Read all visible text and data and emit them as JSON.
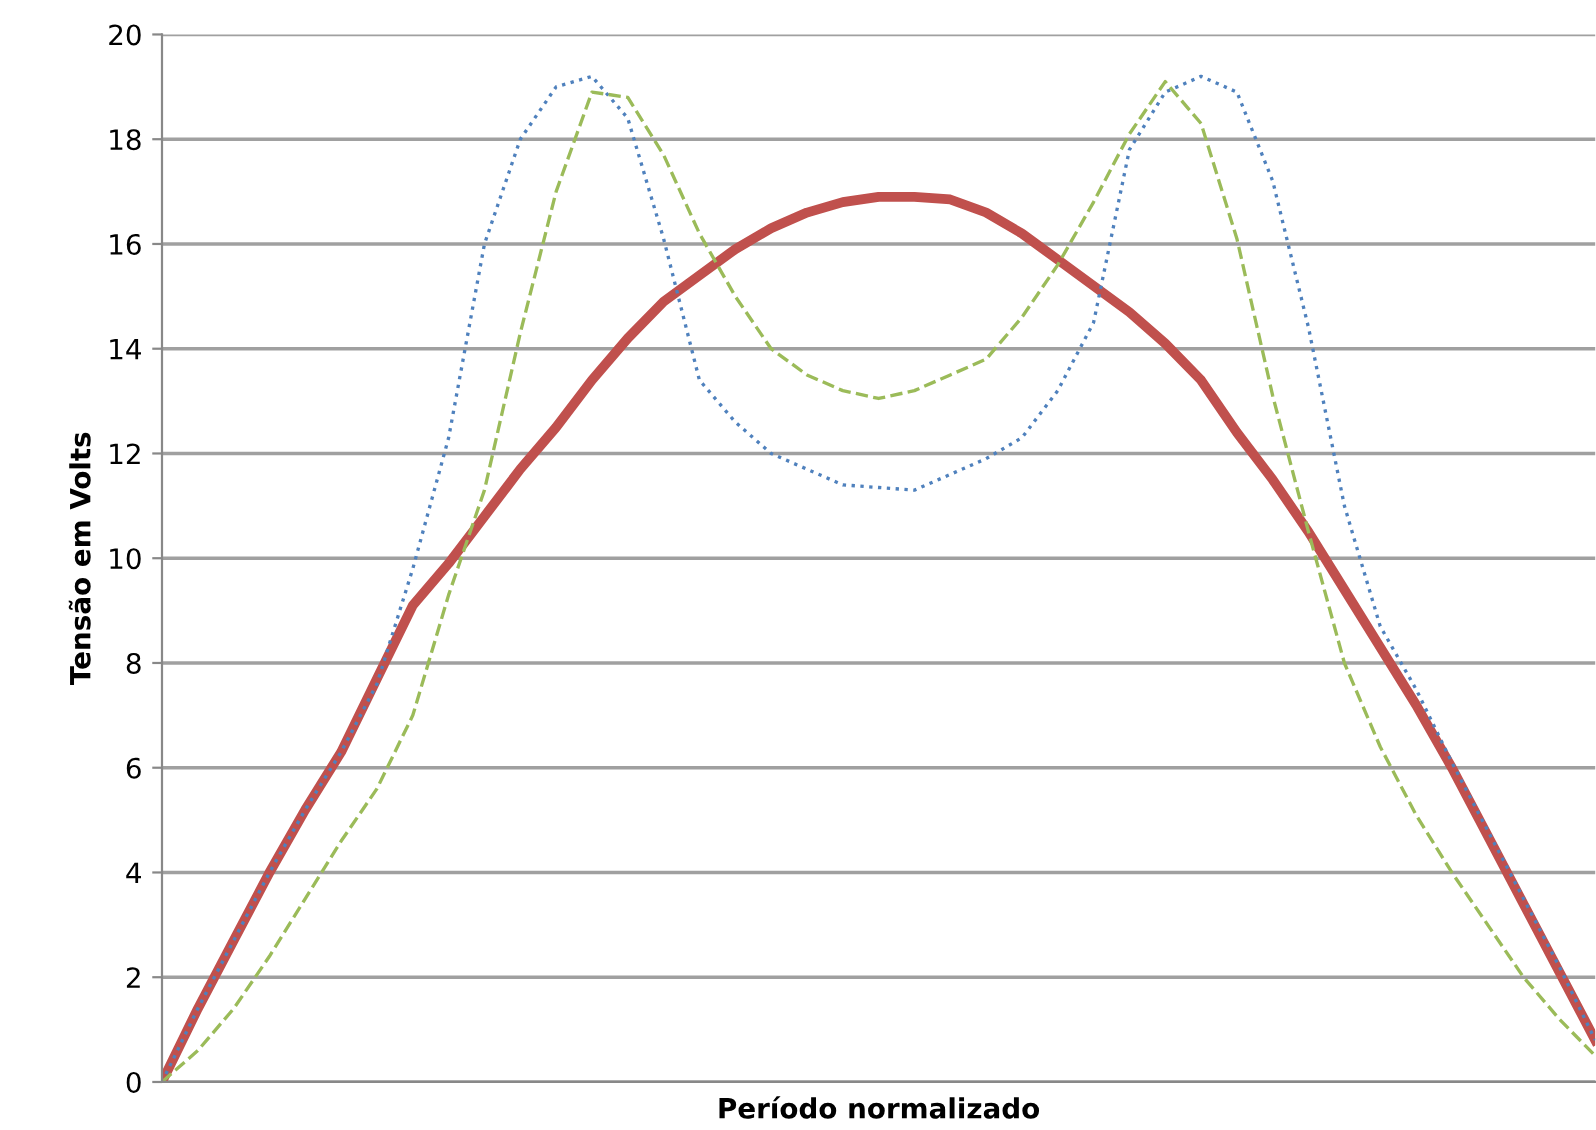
{
  "chart_data": {
    "type": "line",
    "xlabel": "Período normalizado",
    "ylabel": "Tensão em Volts",
    "categories": [
      null,
      null,
      null,
      null,
      null,
      null,
      null,
      null,
      null,
      null,
      null,
      null,
      null,
      null,
      null,
      null,
      null,
      null,
      null,
      null,
      null,
      null,
      null,
      null,
      null,
      null,
      null,
      null,
      null,
      null,
      null,
      null,
      null,
      null,
      null,
      null,
      null,
      null,
      null,
      null,
      null
    ],
    "series": [
      {
        "color": "#c0504d",
        "line_style": "solid",
        "values": [
          0,
          1.4,
          2.7,
          4.0,
          5.2,
          6.3,
          7.7,
          9.1,
          9.9,
          10.8,
          11.7,
          12.5,
          13.4,
          14.2,
          14.9,
          15.4,
          15.9,
          16.3,
          16.6,
          16.8,
          16.9,
          16.9,
          16.85,
          16.6,
          16.2,
          15.7,
          15.2,
          14.7,
          14.1,
          13.4,
          12.4,
          11.5,
          10.5,
          9.4,
          8.3,
          7.2,
          6.0,
          4.7,
          3.4,
          2.1,
          0.8
        ]
      },
      {
        "color": "#4f81bd",
        "line_style": "dotted",
        "values": [
          0,
          1.4,
          2.7,
          4.0,
          5.2,
          6.3,
          7.6,
          9.8,
          12.3,
          16.0,
          18.0,
          19.0,
          19.2,
          18.4,
          16.1,
          13.4,
          12.6,
          12.0,
          11.7,
          11.4,
          11.35,
          11.3,
          11.6,
          11.9,
          12.3,
          13.2,
          14.5,
          17.8,
          18.9,
          19.2,
          18.9,
          17.2,
          14.4,
          11.0,
          8.7,
          7.5,
          6.1,
          4.8,
          3.5,
          2.2,
          0.8
        ]
      },
      {
        "color": "#9bbb59",
        "line_style": "dashed",
        "values": [
          0,
          0.6,
          1.4,
          2.4,
          3.5,
          4.6,
          5.6,
          7.0,
          9.3,
          11.3,
          14.3,
          17.0,
          18.9,
          18.8,
          17.7,
          16.2,
          15.0,
          14.0,
          13.5,
          13.2,
          13.05,
          13.2,
          13.5,
          13.8,
          14.6,
          15.6,
          16.8,
          18.1,
          19.1,
          18.3,
          16.1,
          13.1,
          10.5,
          8.0,
          6.4,
          5.1,
          4.0,
          3.0,
          2.0,
          1.2,
          0.5
        ]
      }
    ],
    "ylim": [
      0,
      20
    ],
    "yticks": [
      0,
      2,
      4,
      6,
      8,
      10,
      12,
      14,
      16,
      18,
      20
    ],
    "grid": "y",
    "legend": false,
    "marker": "none"
  }
}
